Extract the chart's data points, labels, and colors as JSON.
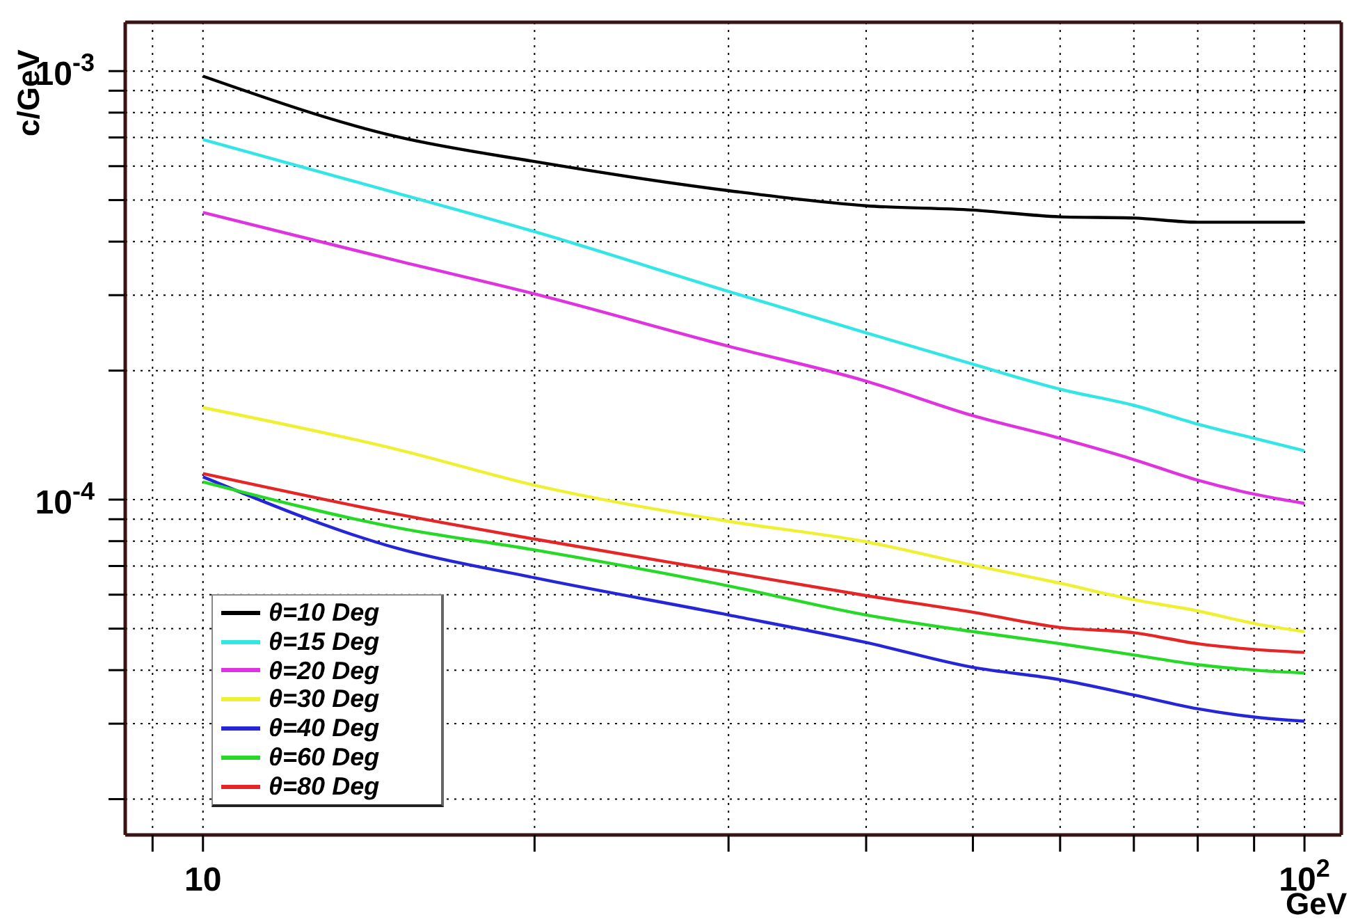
{
  "chart_data": {
    "type": "line",
    "xlabel": "GeV",
    "ylabel": "c/GeV",
    "x": [
      10,
      15,
      20,
      30,
      40,
      50,
      60,
      70,
      80,
      90,
      100
    ],
    "series": [
      {
        "name": "θ=10 Deg",
        "color": "#000000",
        "values": [
          0.000973,
          0.000703,
          0.000615,
          0.000526,
          0.000485,
          0.000474,
          0.000457,
          0.000454,
          0.000444,
          0.000444,
          0.000444
        ]
      },
      {
        "name": "θ=15 Deg",
        "color": "#33e6e6",
        "values": [
          0.000692,
          0.000519,
          0.000422,
          0.000306,
          0.000245,
          0.000207,
          0.000181,
          0.000166,
          0.00015,
          0.000139,
          0.00013
        ]
      },
      {
        "name": "θ=20 Deg",
        "color": "#e033e0",
        "values": [
          0.000468,
          0.000361,
          0.000302,
          0.000228,
          0.000189,
          0.000157,
          0.000139,
          0.000124,
          0.000111,
          0.000103,
          9.8e-05
        ]
      },
      {
        "name": "θ=30 Deg",
        "color": "#f0f033",
        "values": [
          0.000164,
          0.000131,
          0.000108,
          8.9e-05,
          7.97e-05,
          7.03e-05,
          6.38e-05,
          5.84e-05,
          5.5e-05,
          5.14e-05,
          4.92e-05
        ]
      },
      {
        "name": "θ=40 Deg",
        "color": "#2626d9",
        "values": [
          0.000113,
          7.7e-05,
          6.57e-05,
          5.38e-05,
          4.64e-05,
          4.06e-05,
          3.8e-05,
          3.5e-05,
          3.25e-05,
          3.11e-05,
          3.04e-05
        ]
      },
      {
        "name": "θ=60 Deg",
        "color": "#26d926",
        "values": [
          0.00011,
          8.6e-05,
          7.63e-05,
          6.29e-05,
          5.38e-05,
          4.92e-05,
          4.61e-05,
          4.34e-05,
          4.12e-05,
          4e-05,
          3.94e-05
        ]
      },
      {
        "name": "θ=80 Deg",
        "color": "#e62626",
        "values": [
          0.000115,
          9.25e-05,
          8.09e-05,
          6.77e-05,
          5.97e-05,
          5.46e-05,
          5.03e-05,
          4.89e-05,
          4.61e-05,
          4.47e-05,
          4.4e-05
        ]
      }
    ],
    "log": "xy",
    "xlim": [
      8.5,
      108
    ],
    "xticks": [
      {
        "value": 9,
        "label": null
      },
      {
        "value": 10,
        "label": "10"
      },
      {
        "value": 20,
        "label": null
      },
      {
        "value": 30,
        "label": null
      },
      {
        "value": 40,
        "label": null
      },
      {
        "value": 50,
        "label": null
      },
      {
        "value": 60,
        "label": null
      },
      {
        "value": 70,
        "label": null
      },
      {
        "value": 80,
        "label": null
      },
      {
        "value": 90,
        "label": null
      },
      {
        "value": 100,
        "label": "10$^{2}$"
      }
    ],
    "ylim": [
      1.65e-05,
      0.0013
    ],
    "yticks": [
      {
        "value": 2e-05,
        "label": null
      },
      {
        "value": 3e-05,
        "label": null
      },
      {
        "value": 4e-05,
        "label": null
      },
      {
        "value": 5e-05,
        "label": null
      },
      {
        "value": 6e-05,
        "label": null
      },
      {
        "value": 7e-05,
        "label": null
      },
      {
        "value": 8e-05,
        "label": null
      },
      {
        "value": 9e-05,
        "label": null
      },
      {
        "value": 0.0001,
        "label": "10$^{-4}$"
      },
      {
        "value": 0.0002,
        "label": null
      },
      {
        "value": 0.0003,
        "label": null
      },
      {
        "value": 0.0004,
        "label": null
      },
      {
        "value": 0.0005,
        "label": null
      },
      {
        "value": 0.0006,
        "label": null
      },
      {
        "value": 0.0007,
        "label": null
      },
      {
        "value": 0.0008,
        "label": null
      },
      {
        "value": 0.0009,
        "label": null
      },
      {
        "value": 0.001,
        "label": "10$^{-3}$"
      }
    ],
    "grid": true,
    "legend": "bottom left",
    "marker": "none",
    "line_style": "solid"
  }
}
